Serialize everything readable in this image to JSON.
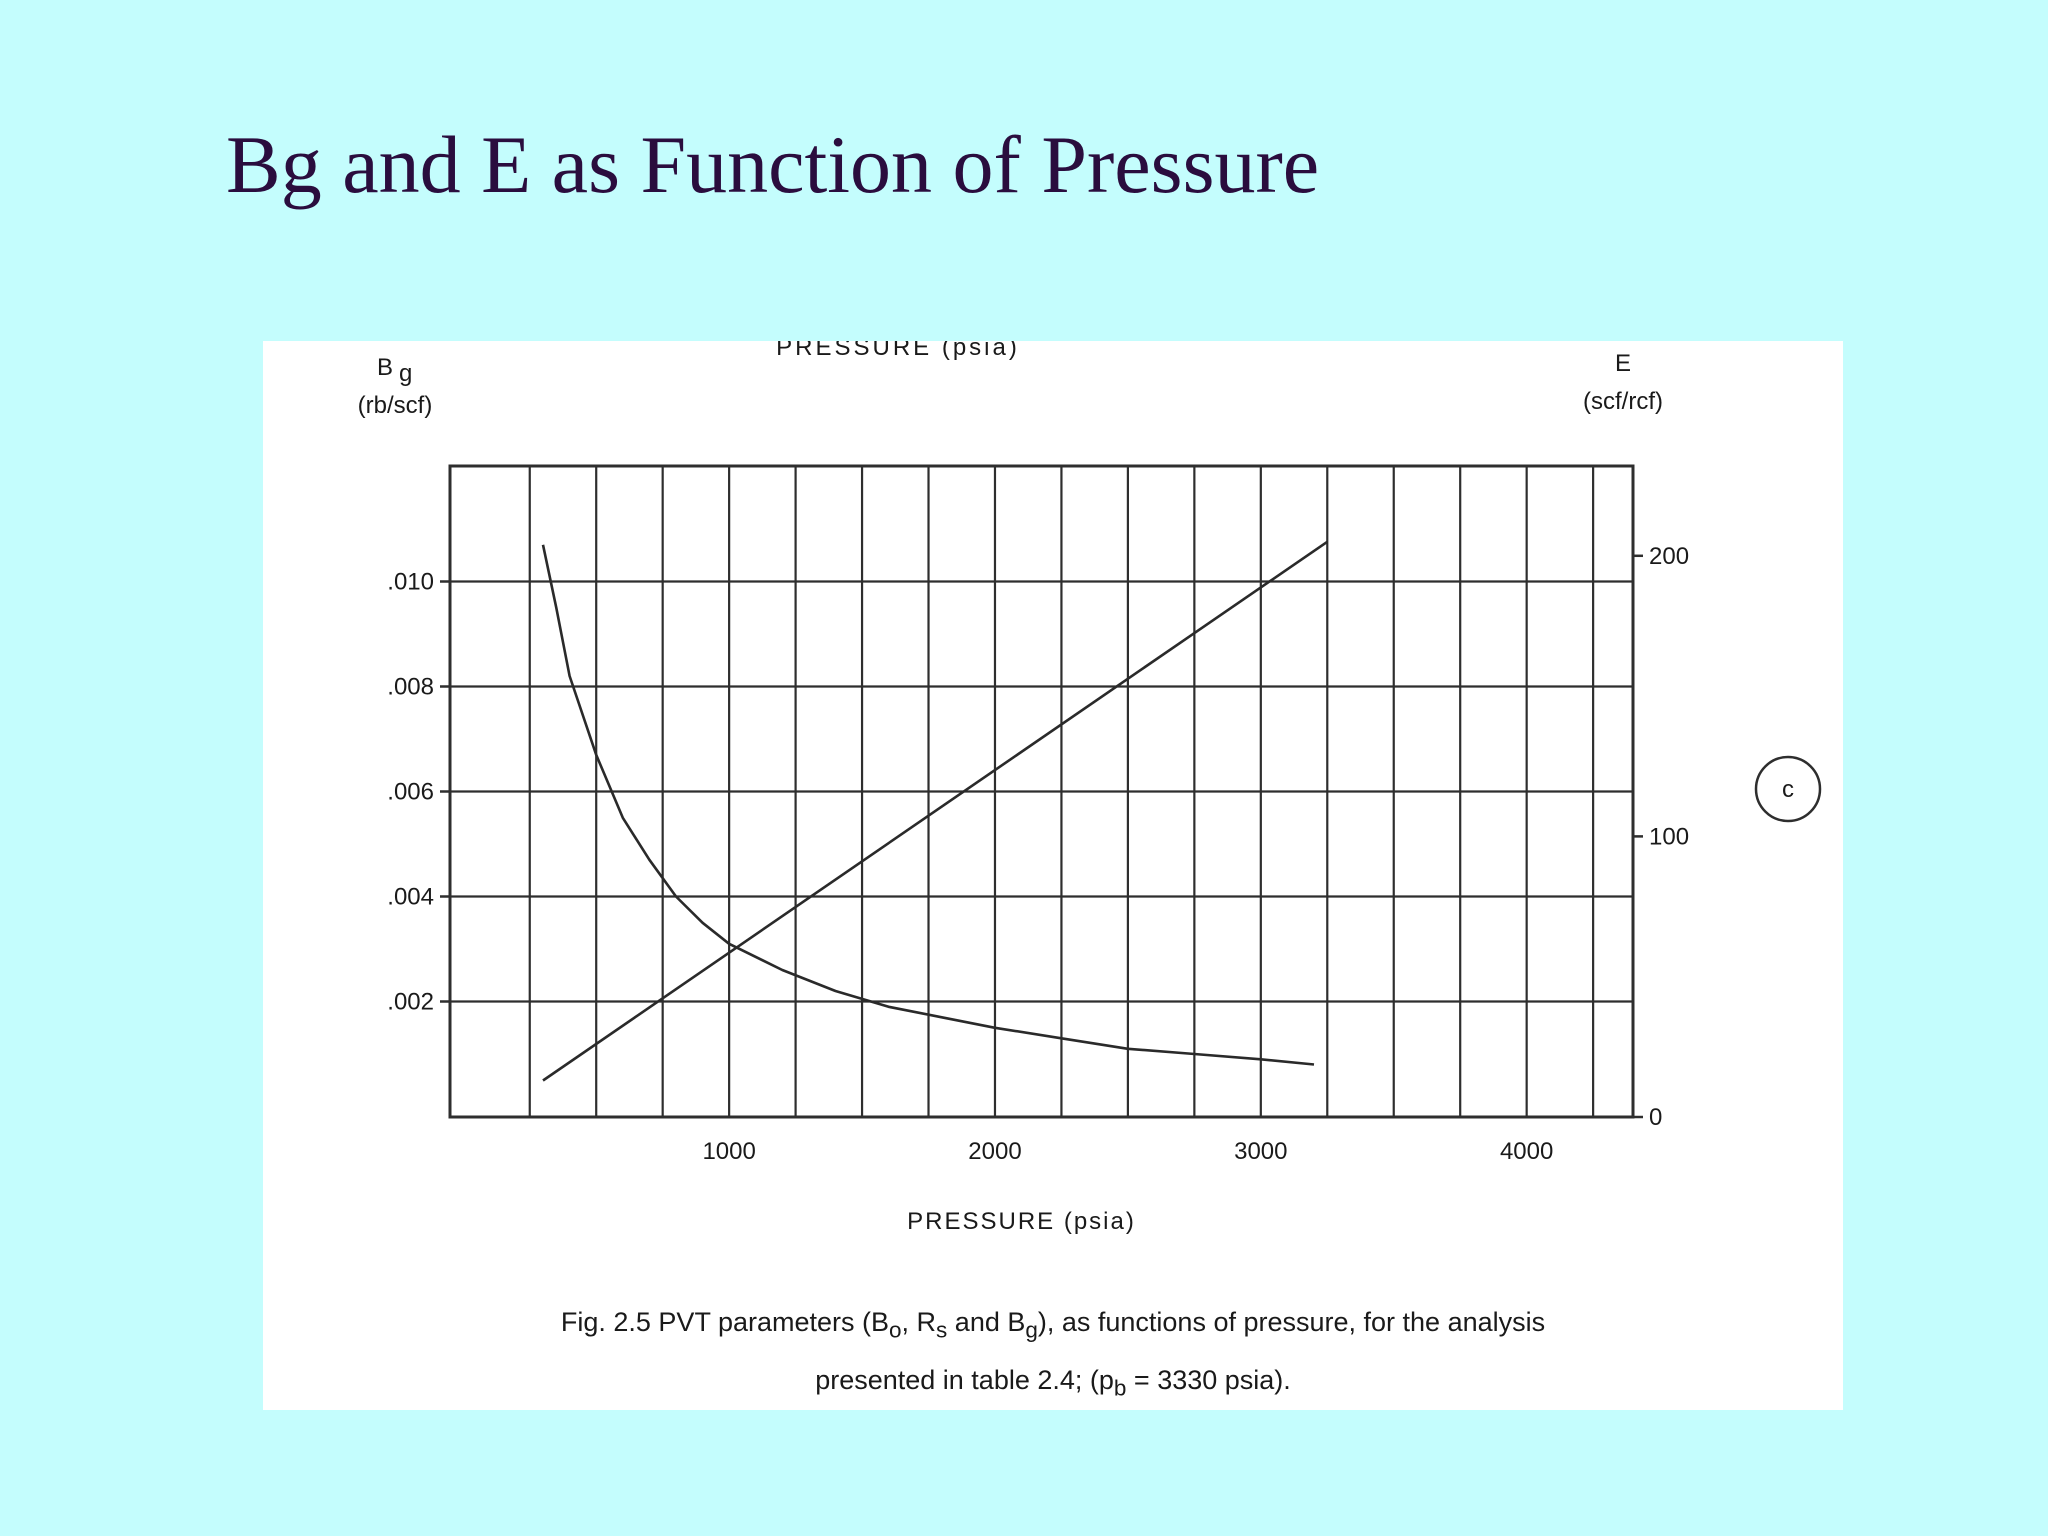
{
  "slide": {
    "title": "Bg and E as Function of Pressure"
  },
  "figure": {
    "top_cropped_label": "PRESSURE (psia)",
    "panel_marker": "c",
    "caption_line1": "Fig. 2.5  PVT parameters (B",
    "caption_sub_o": "o",
    "caption_mid1": ", R",
    "caption_sub_s": "s",
    "caption_mid2": " and B",
    "caption_sub_g": "g",
    "caption_end1": "), as functions of pressure, for the analysis",
    "caption_line2": "presented in table 2.4; (p",
    "caption_sub_b": "b",
    "caption_end2": " = 3330 psia)."
  },
  "chart_data": {
    "type": "line",
    "xlabel": "PRESSURE (psia)",
    "ylabel_left": "Bg",
    "ylabel_left_sub": "g",
    "ylabel_left_units": "(rb/scf)",
    "ylabel_right": "E",
    "ylabel_right_units": "(scf/rcf)",
    "xlim": [
      -50,
      4400
    ],
    "ylim_left": [
      -0.0002,
      0.0122
    ],
    "ylim_right": [
      0,
      232
    ],
    "x_ticks": [
      1000,
      2000,
      3000,
      4000
    ],
    "x_tick_labels": [
      "1000",
      "2000",
      "3000",
      "4000"
    ],
    "y_left_ticks": [
      0.002,
      0.004,
      0.006,
      0.008,
      0.01
    ],
    "y_left_tick_labels": [
      ".002",
      ".004",
      ".006",
      ".008",
      ".010"
    ],
    "y_right_ticks": [
      0,
      100,
      200
    ],
    "y_right_tick_labels": [
      "0",
      "100",
      "200"
    ],
    "grid": true,
    "series": [
      {
        "axis": "left",
        "color": "#2a2a2a",
        "x": [
          300,
          350,
          400,
          500,
          600,
          700,
          800,
          900,
          1000,
          1200,
          1400,
          1600,
          1800,
          2000,
          2250,
          2500,
          2750,
          3000,
          3200
        ],
        "values": [
          0.0107,
          0.0095,
          0.0082,
          0.0067,
          0.0055,
          0.0047,
          0.004,
          0.0035,
          0.0031,
          0.0026,
          0.0022,
          0.0019,
          0.0017,
          0.0015,
          0.0013,
          0.0011,
          0.001,
          0.0009,
          0.0008
        ]
      },
      {
        "axis": "right",
        "color": "#2a2a2a",
        "x": [
          300,
          3250
        ],
        "values": [
          13,
          205
        ]
      }
    ]
  }
}
